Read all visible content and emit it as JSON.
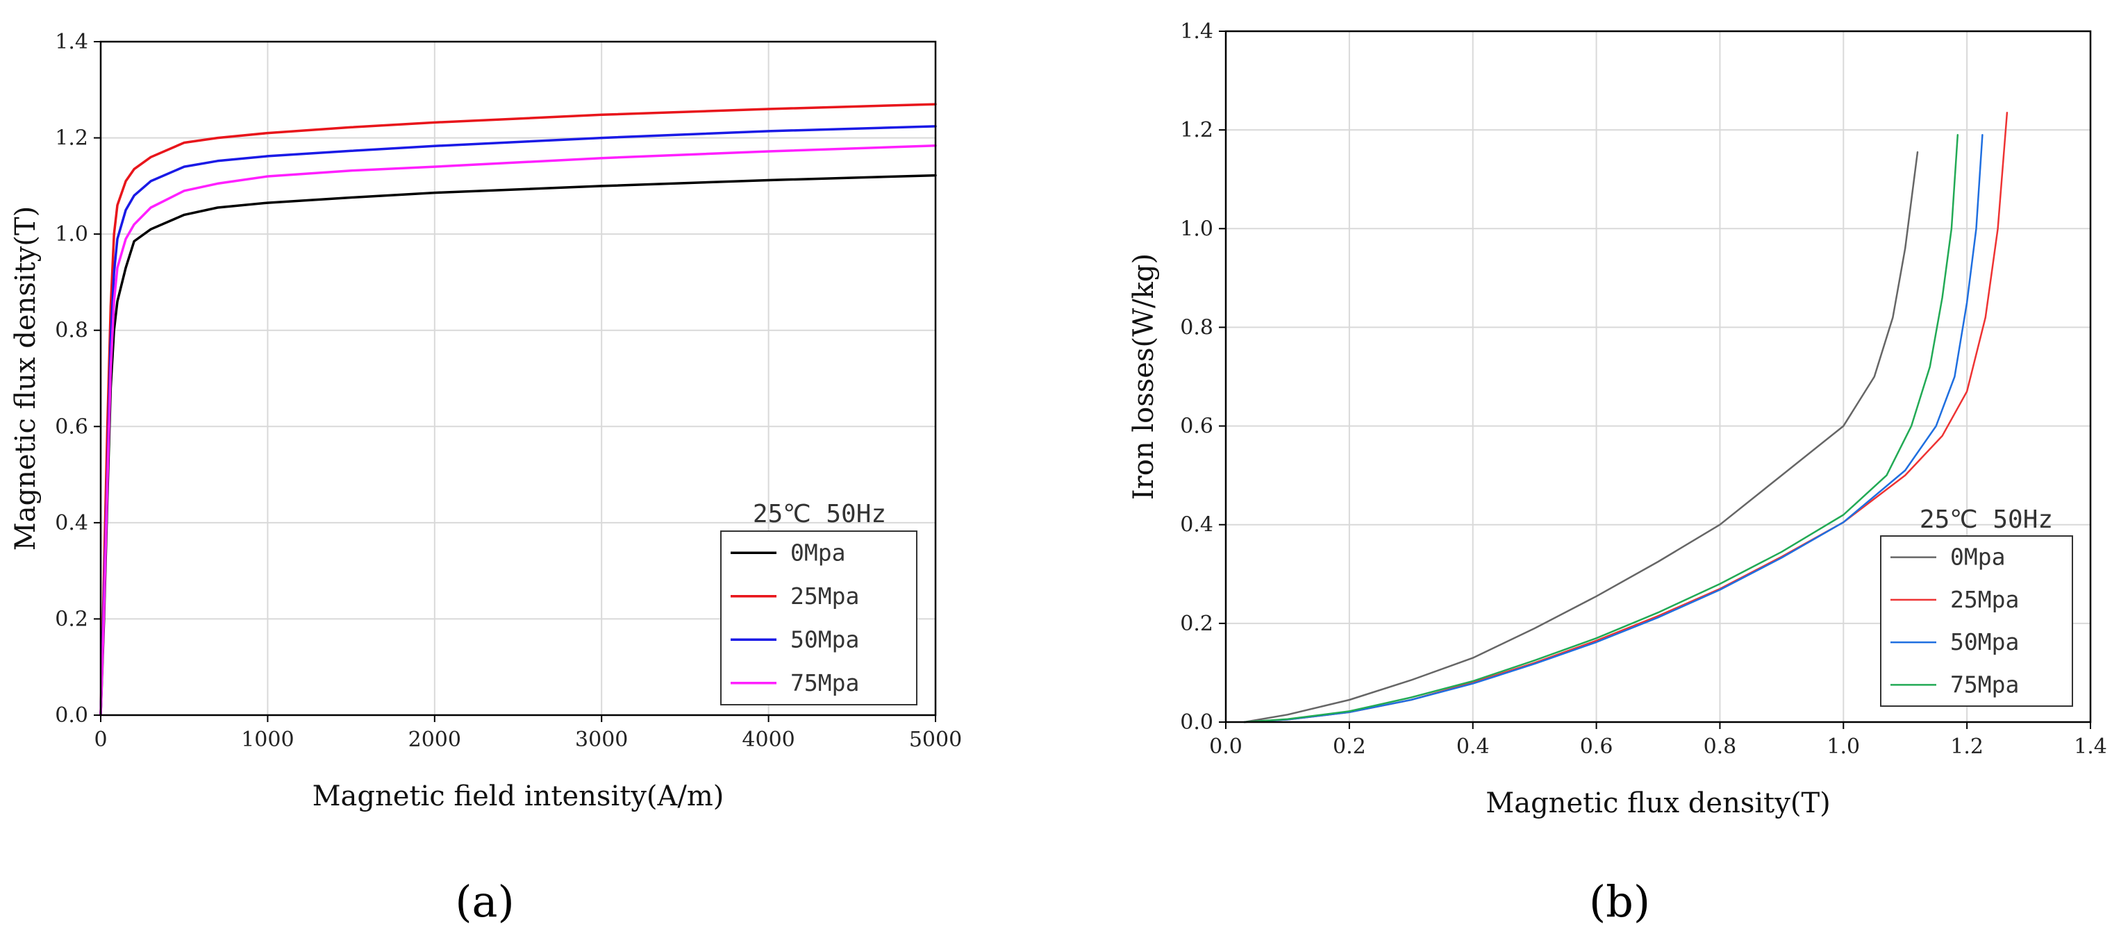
{
  "chart_data": [
    {
      "type": "line",
      "panel": "a",
      "xlabel": "Magnetic field intensity(A/m)",
      "ylabel": "Magnetic flux density(T)",
      "xlim": [
        0,
        5000
      ],
      "ylim": [
        0,
        1.4
      ],
      "xticks": [
        0,
        1000,
        2000,
        3000,
        4000,
        5000
      ],
      "yticks": [
        0.0,
        0.2,
        0.4,
        0.6,
        0.8,
        1.0,
        1.2,
        1.4
      ],
      "grid": true,
      "legend_title": "25℃  50Hz",
      "legend_position": "bottom-right",
      "series": [
        {
          "name": "0Mpa",
          "color": "#000000",
          "x": [
            0,
            20,
            40,
            60,
            80,
            100,
            150,
            200,
            300,
            500,
            700,
            1000,
            1500,
            2000,
            3000,
            4000,
            5000
          ],
          "y": [
            0,
            0.2,
            0.45,
            0.68,
            0.8,
            0.86,
            0.93,
            0.985,
            1.01,
            1.04,
            1.055,
            1.065,
            1.076,
            1.086,
            1.1,
            1.112,
            1.122
          ]
        },
        {
          "name": "25Mpa",
          "color": "#e8151b",
          "x": [
            0,
            20,
            40,
            60,
            80,
            100,
            150,
            200,
            300,
            500,
            700,
            1000,
            1500,
            2000,
            3000,
            4000,
            5000
          ],
          "y": [
            0,
            0.3,
            0.6,
            0.85,
            1.0,
            1.06,
            1.11,
            1.135,
            1.16,
            1.19,
            1.2,
            1.21,
            1.222,
            1.232,
            1.248,
            1.26,
            1.27
          ]
        },
        {
          "name": "50Mpa",
          "color": "#1a1ae6",
          "x": [
            0,
            20,
            40,
            60,
            80,
            100,
            150,
            200,
            300,
            500,
            700,
            1000,
            1500,
            2000,
            3000,
            4000,
            5000
          ],
          "y": [
            0,
            0.25,
            0.5,
            0.78,
            0.92,
            0.99,
            1.05,
            1.08,
            1.11,
            1.14,
            1.152,
            1.162,
            1.173,
            1.183,
            1.2,
            1.214,
            1.224
          ]
        },
        {
          "name": "75Mpa",
          "color": "#ff20ff",
          "x": [
            0,
            20,
            40,
            60,
            80,
            100,
            150,
            200,
            300,
            500,
            700,
            1000,
            1500,
            2000,
            3000,
            4000,
            5000
          ],
          "y": [
            0,
            0.22,
            0.48,
            0.72,
            0.86,
            0.93,
            0.99,
            1.02,
            1.055,
            1.09,
            1.105,
            1.12,
            1.132,
            1.14,
            1.158,
            1.172,
            1.184
          ]
        }
      ]
    },
    {
      "type": "line",
      "panel": "b",
      "xlabel": "Magnetic flux density(T)",
      "ylabel": "Iron losses(W/kg)",
      "xlim": [
        0,
        1.4
      ],
      "ylim": [
        0,
        1.4
      ],
      "xticks": [
        0.0,
        0.2,
        0.4,
        0.6,
        0.8,
        1.0,
        1.2,
        1.4
      ],
      "yticks": [
        0.0,
        0.2,
        0.4,
        0.6,
        0.8,
        1.0,
        1.2,
        1.4
      ],
      "grid": true,
      "legend_title": "25℃  50Hz",
      "legend_position": "bottom-right",
      "series": [
        {
          "name": "0Mpa",
          "color": "#666666",
          "x": [
            0.03,
            0.1,
            0.2,
            0.3,
            0.4,
            0.5,
            0.6,
            0.7,
            0.8,
            0.9,
            1.0,
            1.05,
            1.08,
            1.1,
            1.12
          ],
          "y": [
            0,
            0.015,
            0.045,
            0.085,
            0.13,
            0.19,
            0.255,
            0.325,
            0.4,
            0.5,
            0.6,
            0.7,
            0.82,
            0.96,
            1.155
          ]
        },
        {
          "name": "25Mpa",
          "color": "#ee3333",
          "x": [
            0.03,
            0.1,
            0.2,
            0.3,
            0.4,
            0.5,
            0.6,
            0.7,
            0.8,
            0.9,
            1.0,
            1.1,
            1.16,
            1.2,
            1.23,
            1.25,
            1.265
          ],
          "y": [
            0,
            0.005,
            0.02,
            0.045,
            0.08,
            0.12,
            0.165,
            0.215,
            0.27,
            0.335,
            0.405,
            0.5,
            0.58,
            0.67,
            0.82,
            1.0,
            1.235
          ]
        },
        {
          "name": "50Mpa",
          "color": "#1f6fe0",
          "x": [
            0.03,
            0.1,
            0.2,
            0.3,
            0.4,
            0.5,
            0.6,
            0.7,
            0.8,
            0.9,
            1.0,
            1.1,
            1.15,
            1.18,
            1.2,
            1.215,
            1.225
          ],
          "y": [
            0,
            0.005,
            0.02,
            0.045,
            0.078,
            0.118,
            0.162,
            0.212,
            0.268,
            0.333,
            0.405,
            0.51,
            0.6,
            0.7,
            0.85,
            1.0,
            1.19
          ]
        },
        {
          "name": "75Mpa",
          "color": "#22aa55",
          "x": [
            0.03,
            0.1,
            0.2,
            0.3,
            0.4,
            0.5,
            0.6,
            0.7,
            0.8,
            0.9,
            1.0,
            1.07,
            1.11,
            1.14,
            1.16,
            1.175,
            1.185
          ],
          "y": [
            0,
            0.006,
            0.022,
            0.05,
            0.083,
            0.125,
            0.17,
            0.222,
            0.28,
            0.345,
            0.42,
            0.5,
            0.6,
            0.72,
            0.86,
            1.0,
            1.19
          ]
        }
      ]
    }
  ],
  "captions": {
    "a": "(a)",
    "b": "(b)"
  }
}
